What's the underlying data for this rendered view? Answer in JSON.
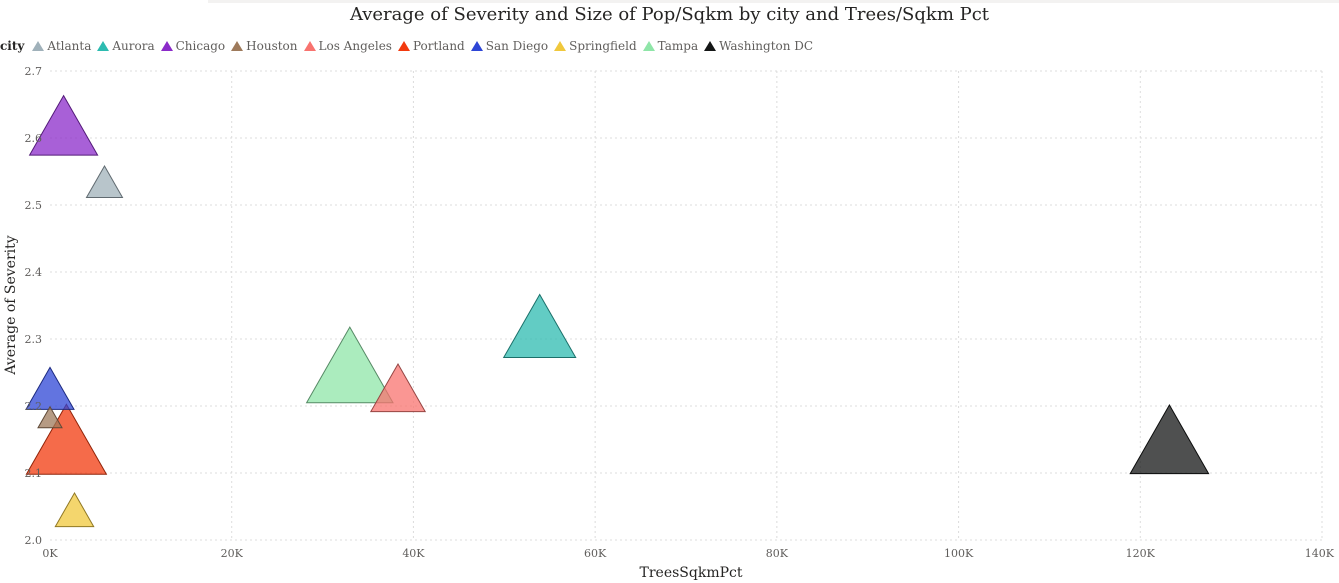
{
  "chart_data": {
    "type": "scatter",
    "title": "Average of Severity and Size of Pop/Sqkm by city and Trees/Sqkm Pct",
    "xlabel": "TreesSqkmPct",
    "ylabel": "Average of Severity",
    "xlim": [
      0,
      140000
    ],
    "ylim": [
      2.0,
      2.7
    ],
    "xticks": [
      0,
      20000,
      40000,
      60000,
      80000,
      100000,
      120000,
      140000
    ],
    "xtick_labels": [
      "0K",
      "20K",
      "40K",
      "60K",
      "80K",
      "100K",
      "120K",
      "140K"
    ],
    "yticks": [
      2.0,
      2.1,
      2.2,
      2.3,
      2.4,
      2.5,
      2.6,
      2.7
    ],
    "ytick_labels": [
      "2.0",
      "2.1",
      "2.2",
      "2.3",
      "2.4",
      "2.5",
      "2.6",
      "2.7"
    ],
    "grid": true,
    "legend_title": "city",
    "legend_placement": "top-left",
    "marker": "triangle",
    "series": [
      {
        "name": "Atlanta",
        "color": "#A0B1BA",
        "x": 6000,
        "y": 2.53,
        "size": 0.45
      },
      {
        "name": "Aurora",
        "color": "#2DBBB0",
        "x": 53900,
        "y": 2.31,
        "size": 0.9
      },
      {
        "name": "Chicago",
        "color": "#8B2BC9",
        "x": 1500,
        "y": 2.61,
        "size": 0.85
      },
      {
        "name": "Houston",
        "color": "#9E7A5B",
        "x": 0,
        "y": 2.18,
        "size": 0.3
      },
      {
        "name": "Los Angeles",
        "color": "#F8736F",
        "x": 38300,
        "y": 2.22,
        "size": 0.68
      },
      {
        "name": "Portland",
        "color": "#F23A0E",
        "x": 1800,
        "y": 2.14,
        "size": 1.0
      },
      {
        "name": "San Diego",
        "color": "#2E46D6",
        "x": 0,
        "y": 2.22,
        "size": 0.6
      },
      {
        "name": "Springfield",
        "color": "#F0C83C",
        "x": 2700,
        "y": 2.04,
        "size": 0.48
      },
      {
        "name": "Tampa",
        "color": "#8FE5A8",
        "x": 33000,
        "y": 2.25,
        "size": 1.08
      },
      {
        "name": "Washington DC",
        "color": "#141616",
        "x": 123200,
        "y": 2.14,
        "size": 0.98
      }
    ]
  }
}
